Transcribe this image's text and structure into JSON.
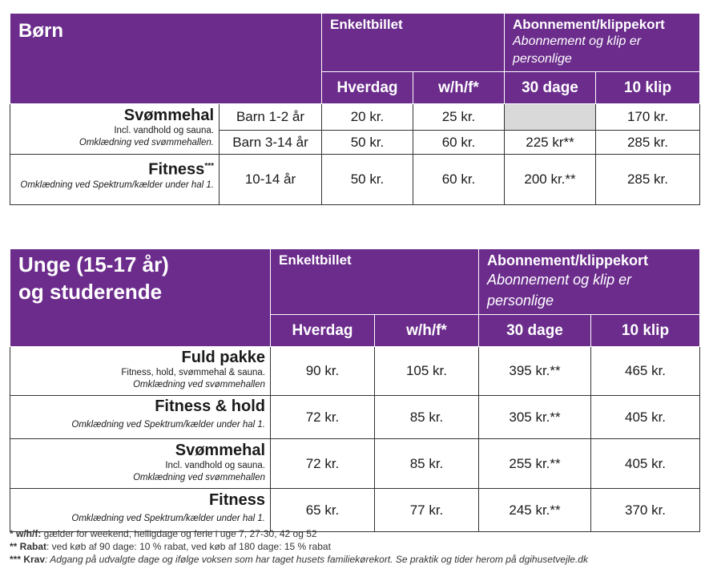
{
  "born": {
    "title": "Børn",
    "enkeltbillet": "Enkeltbillet",
    "abonnement": "Abonnement/klippekort",
    "abonnement_note": "Abonnement og klip er personlige",
    "cols": [
      "Hverdag",
      "w/h/f*",
      "30 dage",
      "10 klip"
    ],
    "svommehal": {
      "name": "Svømmehal",
      "note1": "Incl. vandhold og sauna.",
      "note2": "Omklædning ved svømmehallen.",
      "rows": [
        {
          "age": "Barn 1-2 år",
          "hverdag": "20 kr.",
          "whf": "25 kr.",
          "dage30": "",
          "klip10": "170 kr."
        },
        {
          "age": "Barn 3-14 år",
          "hverdag": "50 kr.",
          "whf": "60 kr.",
          "dage30": "225 kr**",
          "klip10": "285 kr."
        }
      ]
    },
    "fitness": {
      "name": "Fitness",
      "name_sup": "***",
      "note": "Omklædning ved Spektrum/kælder under hal 1.",
      "age": "10-14 år",
      "hverdag": "50 kr.",
      "whf": "60 kr.",
      "dage30": "200 kr.**",
      "klip10": "285 kr."
    }
  },
  "unge": {
    "title_line1": "Unge (15-17 år)",
    "title_line2": "og studerende",
    "enkeltbillet": "Enkeltbillet",
    "abonnement": "Abonnement/klippekort",
    "abonnement_note": "Abonnement og klip er personlige",
    "cols": [
      "Hverdag",
      "w/h/f*",
      "30 dage",
      "10 klip"
    ],
    "rows": [
      {
        "name": "Fuld pakke",
        "note1": "Fitness, hold, svømmehal & sauna.",
        "note2": "Omklædning ved svømmehallen",
        "hverdag": "90 kr.",
        "whf": "105 kr.",
        "dage30": "395 kr.**",
        "klip10": "465 kr."
      },
      {
        "name": "Fitness & hold",
        "note1": "",
        "note2": "Omklædning ved Spektrum/kælder under hal 1.",
        "hverdag": "72 kr.",
        "whf": "85 kr.",
        "dage30": "305 kr.**",
        "klip10": "405 kr."
      },
      {
        "name": "Svømmehal",
        "note1": "Incl. vandhold og sauna.",
        "note2": "Omklædning ved svømmehallen",
        "hverdag": "72 kr.",
        "whf": "85 kr.",
        "dage30": "255 kr.**",
        "klip10": "405 kr."
      },
      {
        "name": "Fitness",
        "note1": "",
        "note2": "Omklædning ved Spektrum/kælder under hal 1.",
        "hverdag": "65 kr.",
        "whf": "77 kr.",
        "dage30": "245 kr.**",
        "klip10": "370 kr."
      }
    ]
  },
  "footnotes": {
    "f1_mark": "* w/h/f:",
    "f1_text": " gælder for weekend, helligdage og ferie i uge 7, 27-30, 42 og 52",
    "f2_mark": "** Rabat",
    "f2_text": ": ved køb af 90 dage: 10 % rabat, ved køb af 180 dage: 15 % rabat",
    "f3_mark": "*** Krav",
    "f3_text": ": Adgang på udvalgte dage og ifølge voksen som har taget husets familiekørekort. Se praktik og tider herom på dgihusetvejle.dk"
  }
}
